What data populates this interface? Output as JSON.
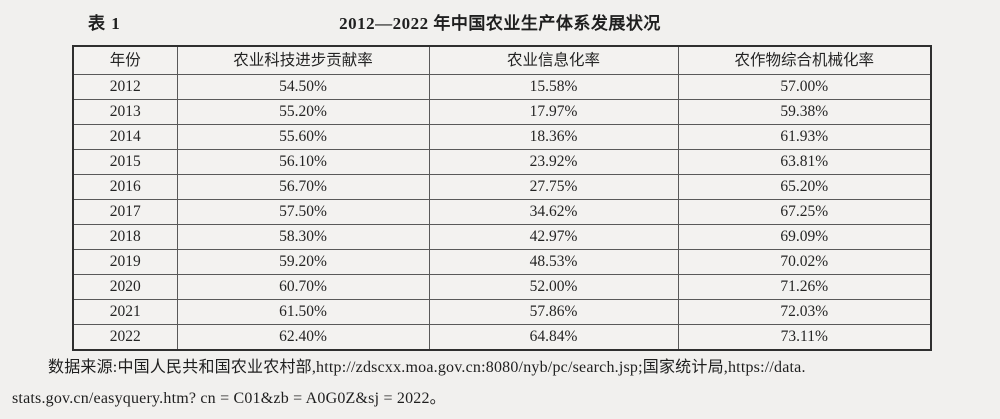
{
  "page": {
    "background_color": "#f1f0ee",
    "text_color": "#1f1f1f"
  },
  "caption": {
    "label": "表 1",
    "title": "2012—2022 年中国农业生产体系发展状况"
  },
  "table": {
    "columns": [
      "年份",
      "农业科技进步贡献率",
      "农业信息化率",
      "农作物综合机械化率"
    ],
    "rows": [
      [
        "2012",
        "54.50%",
        "15.58%",
        "57.00%"
      ],
      [
        "2013",
        "55.20%",
        "17.97%",
        "59.38%"
      ],
      [
        "2014",
        "55.60%",
        "18.36%",
        "61.93%"
      ],
      [
        "2015",
        "56.10%",
        "23.92%",
        "63.81%"
      ],
      [
        "2016",
        "56.70%",
        "27.75%",
        "65.20%"
      ],
      [
        "2017",
        "57.50%",
        "34.62%",
        "67.25%"
      ],
      [
        "2018",
        "58.30%",
        "42.97%",
        "69.09%"
      ],
      [
        "2019",
        "59.20%",
        "48.53%",
        "70.02%"
      ],
      [
        "2020",
        "60.70%",
        "52.00%",
        "71.26%"
      ],
      [
        "2021",
        "61.50%",
        "57.86%",
        "72.03%"
      ],
      [
        "2022",
        "62.40%",
        "64.84%",
        "73.11%"
      ]
    ]
  },
  "source_note": {
    "line1": "数据来源:中国人民共和国农业农村部,http://zdscxx.moa.gov.cn:8080/nyb/pc/search.jsp;国家统计局,https://data.",
    "line2": "stats.gov.cn/easyquery.htm? cn = C01&zb = A0G0Z&sj = 2022。"
  }
}
